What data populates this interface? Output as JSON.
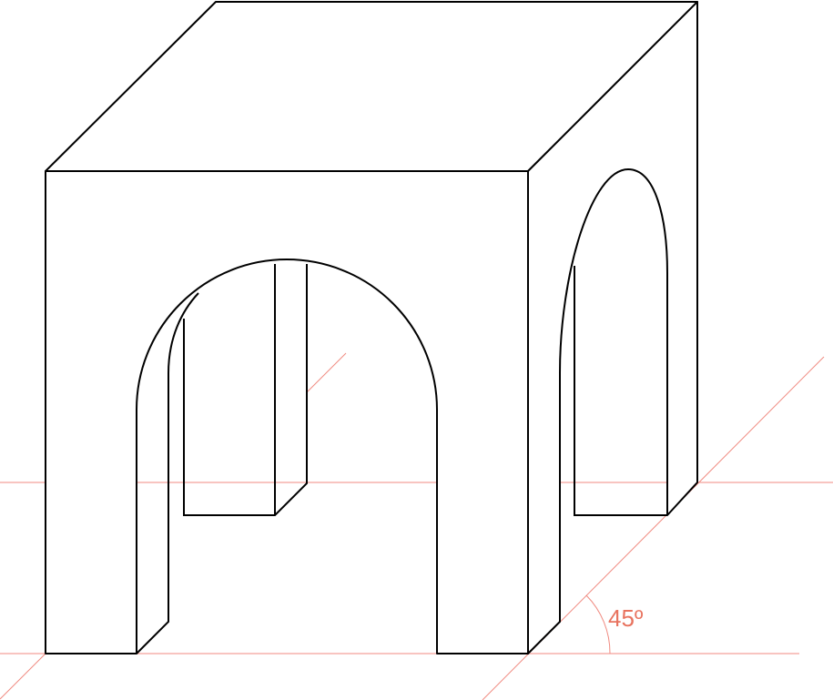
{
  "angle_label": "45º"
}
